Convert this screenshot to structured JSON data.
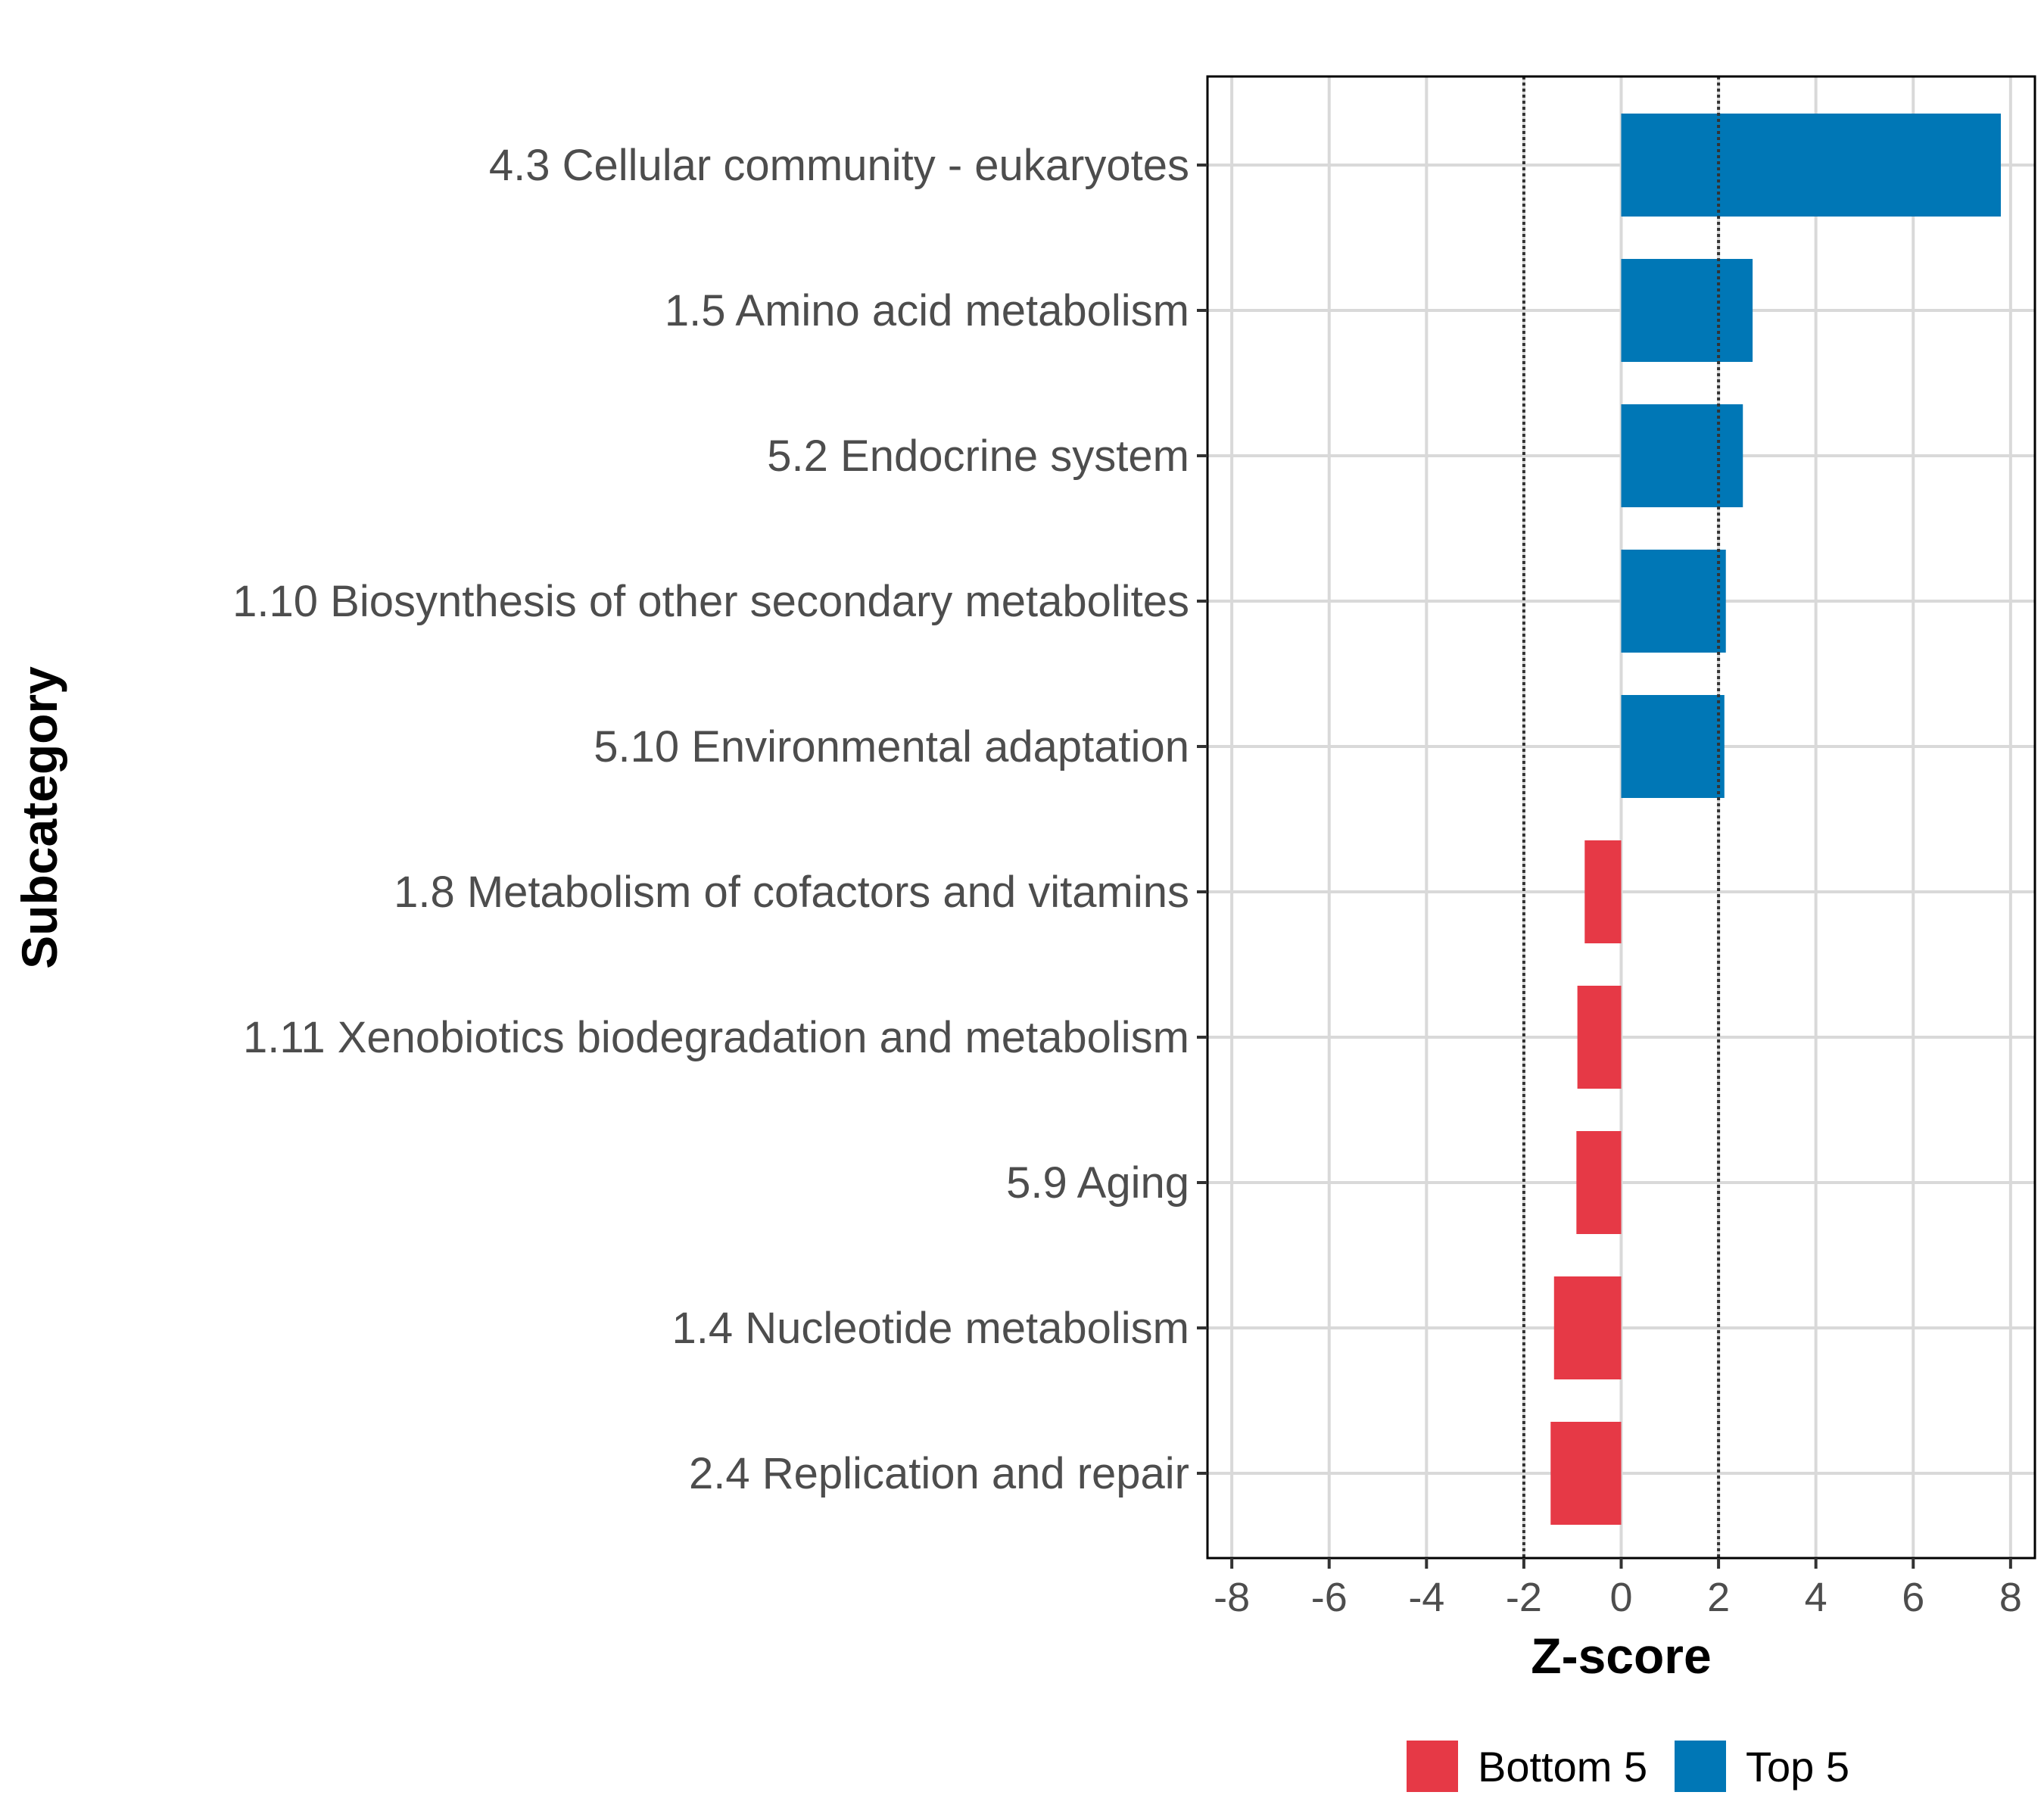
{
  "chart_data": {
    "type": "bar",
    "orientation": "horizontal",
    "title": "",
    "xlabel": "Z-score",
    "ylabel": "Subcategory",
    "xlim": [
      -8.5,
      8.5
    ],
    "xticks": [
      -8,
      -6,
      -4,
      -2,
      0,
      2,
      4,
      6,
      8
    ],
    "xtick_labels": [
      "-8",
      "-6",
      "-4",
      "-2",
      "0",
      "2",
      "4",
      "6",
      "8"
    ],
    "reference_lines": [
      -2,
      2
    ],
    "grid": true,
    "categories": [
      "4.3 Cellular community - eukaryotes",
      "1.5 Amino acid metabolism",
      "5.2 Endocrine system",
      "1.10 Biosynthesis of other secondary metabolites",
      "5.10 Environmental adaptation",
      "1.8 Metabolism of cofactors and vitamins",
      "1.11 Xenobiotics biodegradation and metabolism",
      "5.9 Aging",
      "1.4 Nucleotide metabolism",
      "2.4 Replication and repair"
    ],
    "values": [
      7.8,
      2.7,
      2.5,
      2.15,
      2.12,
      -0.75,
      -0.9,
      -0.92,
      -1.38,
      -1.45
    ],
    "groups": [
      "Top 5",
      "Top 5",
      "Top 5",
      "Top 5",
      "Top 5",
      "Bottom 5",
      "Bottom 5",
      "Bottom 5",
      "Bottom 5",
      "Bottom 5"
    ],
    "legend": {
      "position": "bottom",
      "entries": [
        {
          "label": "Bottom 5",
          "color": "#e63946"
        },
        {
          "label": "Top 5",
          "color": "#0077b6"
        }
      ]
    },
    "colors": {
      "Top 5": "#0077b6",
      "Bottom 5": "#e63946"
    }
  }
}
